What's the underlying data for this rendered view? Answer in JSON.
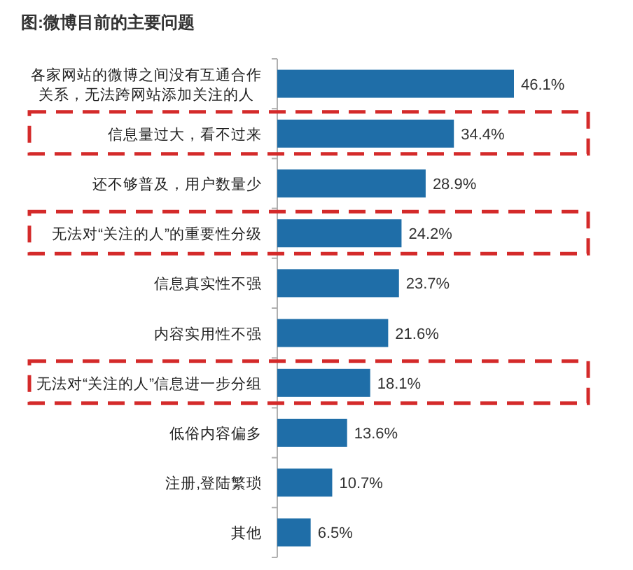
{
  "chart_data": {
    "type": "bar",
    "orientation": "horizontal",
    "title": "图:微博目前的主要问题",
    "categories": [
      "各家网站的微博之间没有互通合作关系，无法跨网站添加关注的人",
      "信息量过大，看不过来",
      "还不够普及，用户数量少",
      "无法对“关注的人”的重要性分级",
      "信息真实性不强",
      "内容实用性不强",
      "无法对“关注的人”信息进一步分组",
      "低俗内容偏多",
      "注册,登陆繁琐",
      "其他"
    ],
    "values": [
      46.1,
      34.4,
      28.9,
      24.2,
      23.7,
      21.6,
      18.1,
      13.6,
      10.7,
      6.5
    ],
    "value_labels": [
      "46.1%",
      "34.4%",
      "28.9%",
      "24.2%",
      "23.7%",
      "21.6%",
      "18.1%",
      "13.6%",
      "10.7%",
      "6.5%"
    ],
    "color": "#1f6ea8"
  }
}
